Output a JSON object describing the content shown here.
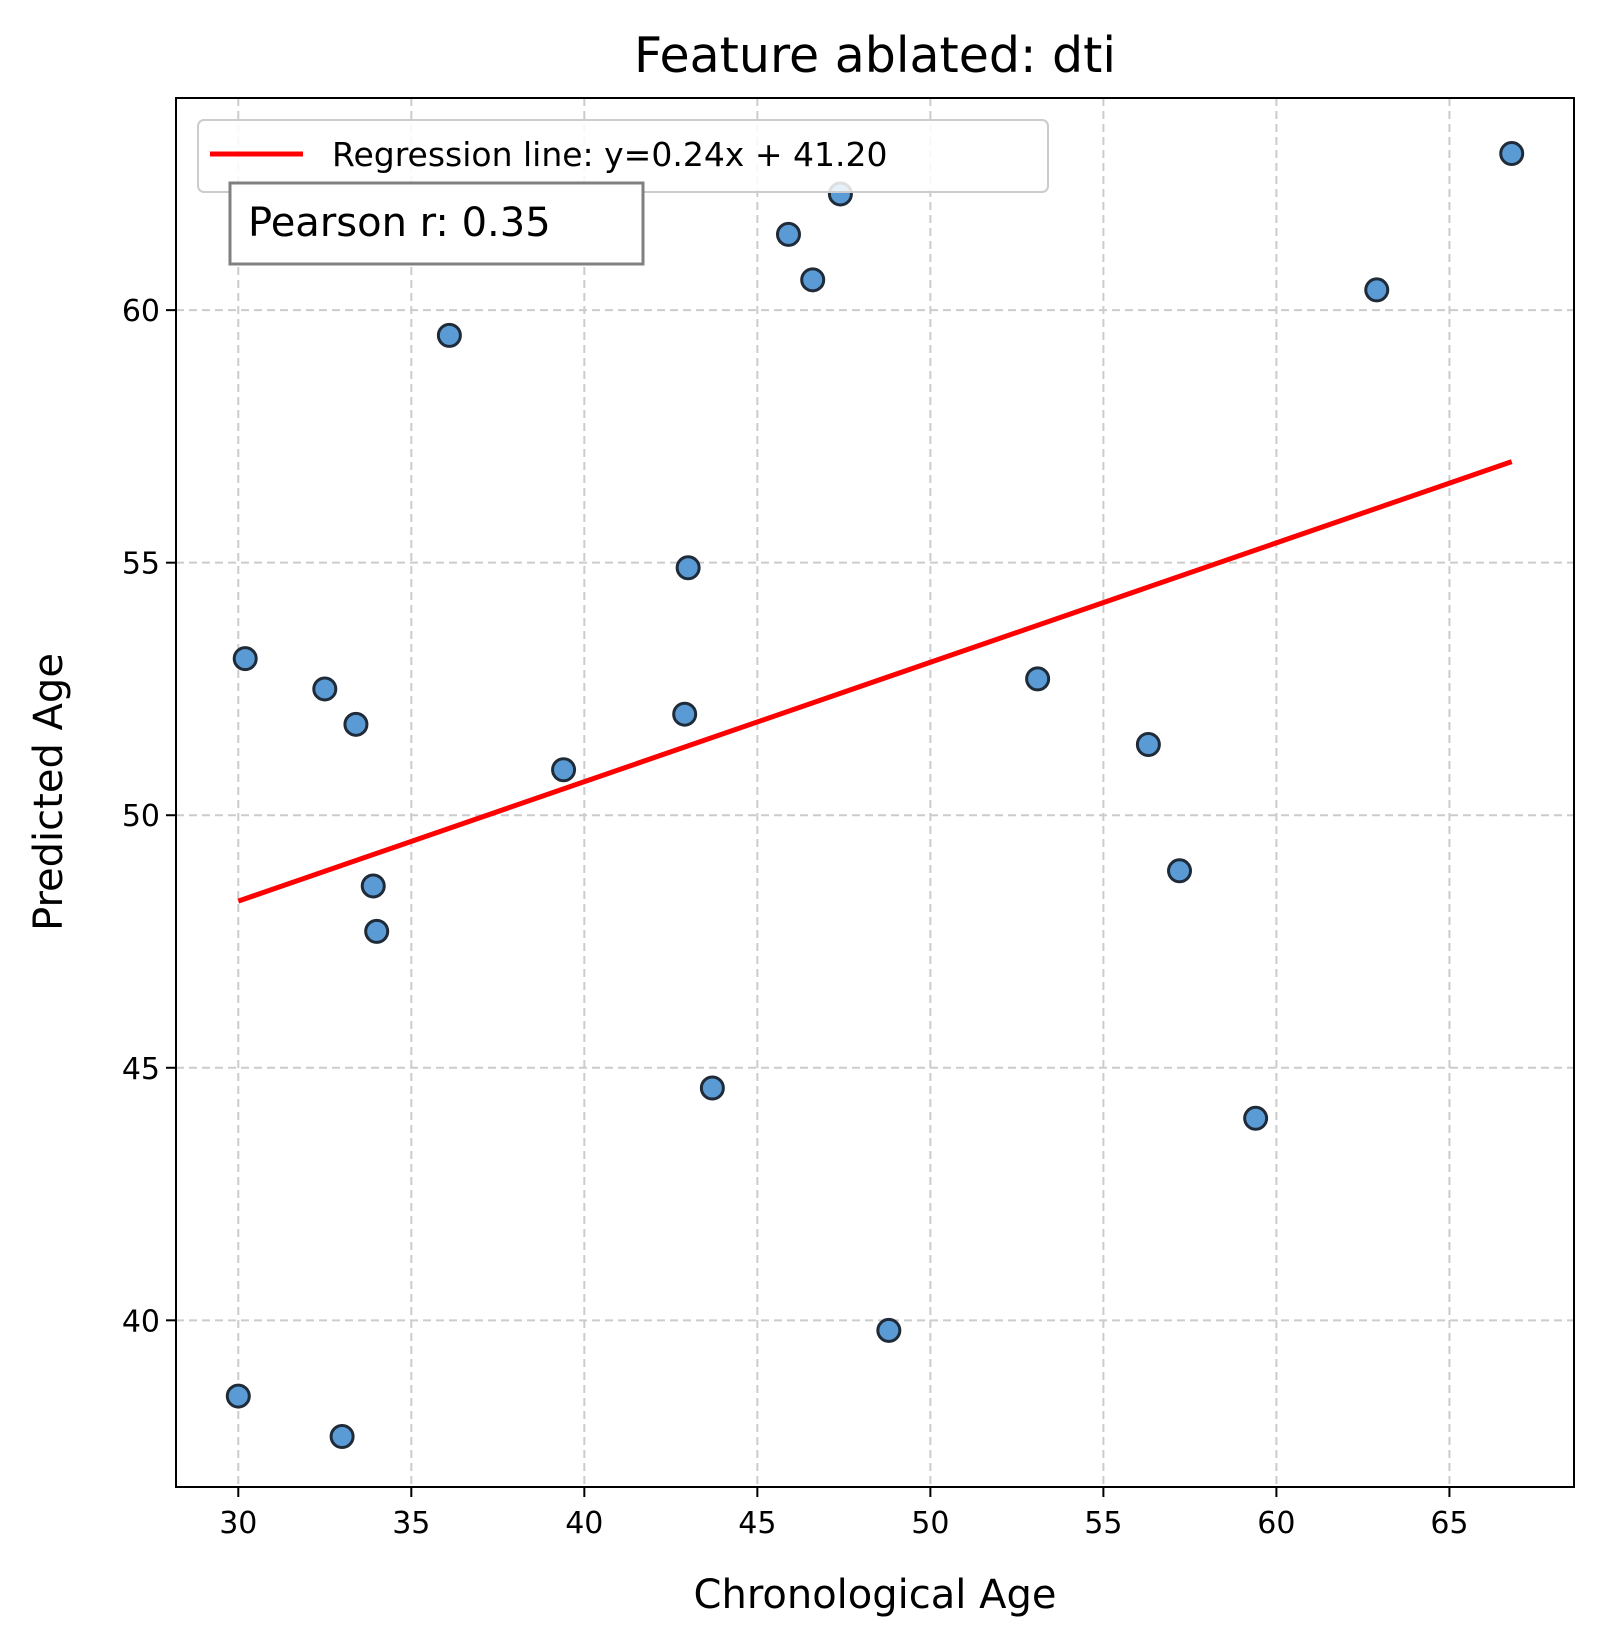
{
  "chart_data": {
    "type": "scatter",
    "title": "Feature ablated: dti",
    "xlabel": "Chronological Age",
    "ylabel": "Predicted Age",
    "xlim": [
      28.2,
      68.6
    ],
    "ylim": [
      36.7,
      64.2
    ],
    "xticks": [
      30,
      35,
      40,
      45,
      50,
      55,
      60,
      65
    ],
    "yticks": [
      40,
      45,
      50,
      55,
      60
    ],
    "grid": true,
    "legend_position": "top-left",
    "colors": {
      "points": "#5b9bd5",
      "point_edge": "#1f2b38",
      "regression": "#ff0000",
      "grid": "#cccccc"
    },
    "series": [
      {
        "type": "scatter",
        "x": [
          30.0,
          33.0,
          30.2,
          32.5,
          33.4,
          33.9,
          34.0,
          36.1,
          39.4,
          42.9,
          43.0,
          43.7,
          45.9,
          46.6,
          47.4,
          48.8,
          53.1,
          56.3,
          57.2,
          59.4,
          62.9,
          66.8
        ],
        "y": [
          38.5,
          37.7,
          53.1,
          52.5,
          51.8,
          48.6,
          47.7,
          59.5,
          50.9,
          52.0,
          54.9,
          44.6,
          61.5,
          60.6,
          62.3,
          39.8,
          52.7,
          51.4,
          48.9,
          44.0,
          60.4,
          63.1
        ]
      },
      {
        "name": "Regression line: y=0.24x + 41.20",
        "type": "line",
        "x": [
          30.0,
          66.8
        ],
        "y": [
          48.3,
          57.0
        ]
      }
    ],
    "annotations": [
      "Pearson r: 0.35"
    ]
  }
}
